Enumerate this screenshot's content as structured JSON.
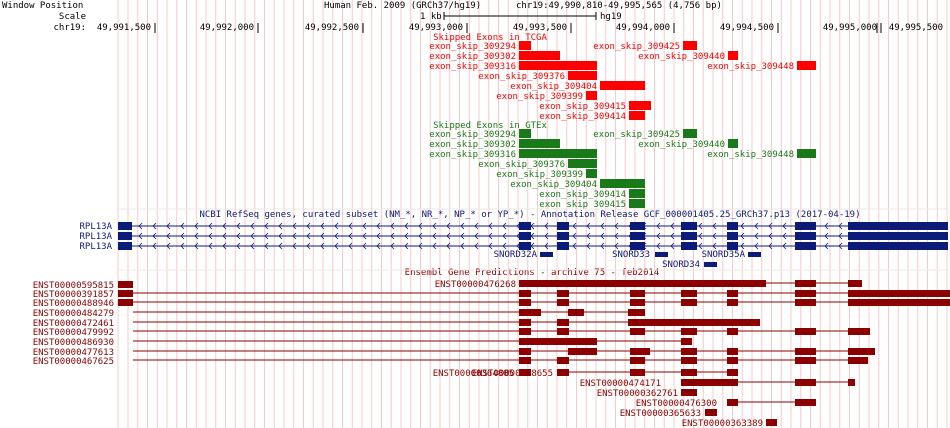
{
  "header": {
    "window_position_label": "Window Position",
    "scale_label": "Scale",
    "chrom_label": "chr19:",
    "assembly": "Human Feb. 2009 (GRCh37/hg19)",
    "position": "chr19:49,990,810-49,995,565 (4,756 bp)",
    "scale_value": "1 kb",
    "scale_assembly": "hg19"
  },
  "ruler": {
    "ticks": [
      "49,991,500",
      "49,992,000",
      "49,992,500",
      "49,993,000",
      "49,993,500",
      "49,994,000",
      "49,994,500",
      "49,995,000",
      "49,995,500"
    ]
  },
  "tracks": {
    "tcga": {
      "title": "Skipped Exons in TCGA",
      "color": "#ff0000",
      "items": [
        {
          "name": "exon_skip_309294"
        },
        {
          "name": "exon_skip_309425"
        },
        {
          "name": "exon_skip_309302"
        },
        {
          "name": "exon_skip_309440"
        },
        {
          "name": "exon_skip_309316"
        },
        {
          "name": "exon_skip_309448"
        },
        {
          "name": "exon_skip_309376"
        },
        {
          "name": "exon_skip_309404"
        },
        {
          "name": "exon_skip_309399"
        },
        {
          "name": "exon_skip_309415"
        },
        {
          "name": "exon_skip_309414"
        }
      ]
    },
    "gtex": {
      "title": "Skipped Exons in GTEx",
      "color": "#1a7a1a",
      "items": [
        {
          "name": "exon_skip_309294"
        },
        {
          "name": "exon_skip_309425"
        },
        {
          "name": "exon_skip_309302"
        },
        {
          "name": "exon_skip_309440"
        },
        {
          "name": "exon_skip_309316"
        },
        {
          "name": "exon_skip_309448"
        },
        {
          "name": "exon_skip_309376"
        },
        {
          "name": "exon_skip_309399"
        },
        {
          "name": "exon_skip_309404"
        },
        {
          "name": "exon_skip_309414"
        },
        {
          "name": "exon_skip_309415"
        }
      ]
    },
    "refseq": {
      "title": "NCBI RefSeq genes, curated subset (NM_*, NR_*, NP_* or YP_*) - Annotation Release GCF_000001405.25_GRCh37.p13 (2017-04-19)",
      "color": "#0c1a78",
      "genes": [
        {
          "name": "RPL13A"
        },
        {
          "name": "RPL13A"
        },
        {
          "name": "RPL13A"
        }
      ],
      "snords": [
        {
          "name": "SNORD32A"
        },
        {
          "name": "SNORD33"
        },
        {
          "name": "SNORD35A"
        },
        {
          "name": "SNORD34"
        }
      ]
    },
    "ensembl": {
      "title": "Ensembl Gene Predictions - archive 75 - feb2014",
      "color": "#8b0000",
      "left_transcripts": [
        {
          "name": "ENST00000595815"
        },
        {
          "name": "ENST00000391857"
        },
        {
          "name": "ENST00000488946"
        },
        {
          "name": "ENST00000484279"
        },
        {
          "name": "ENST00000472461"
        },
        {
          "name": "ENST00000479992"
        },
        {
          "name": "ENST00000486930"
        },
        {
          "name": "ENST00000477613"
        },
        {
          "name": "ENST00000467625"
        }
      ],
      "center_transcripts": [
        {
          "name": "ENST00000476268"
        },
        {
          "name": "ENST00000364805"
        },
        {
          "name": "ENST00000468655"
        },
        {
          "name": "ENST00000474171"
        },
        {
          "name": "ENST00000362761"
        },
        {
          "name": "ENST00000476300"
        },
        {
          "name": "ENST00000365633"
        },
        {
          "name": "ENST00000363389"
        }
      ]
    }
  },
  "colors": {
    "grid": "#ffc8c8",
    "accent_line": "#6666cc",
    "text": "#000000"
  }
}
